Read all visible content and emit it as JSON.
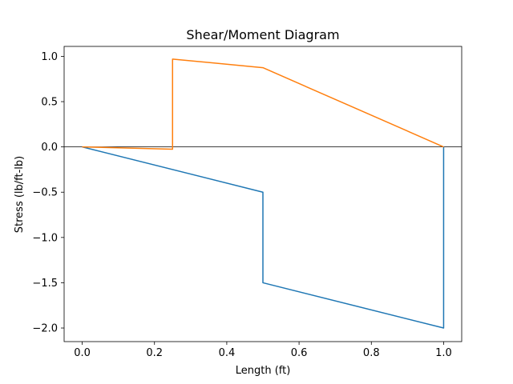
{
  "chart_data": {
    "type": "line",
    "title": "Shear/Moment Diagram",
    "xlabel": "Length (ft)",
    "ylabel": "Stress (lb/ft-lb)",
    "xlim": [
      -0.05,
      1.05
    ],
    "ylim": [
      -2.15,
      1.11
    ],
    "xticks": [
      0.0,
      0.2,
      0.4,
      0.6,
      0.8,
      1.0
    ],
    "xtick_labels": [
      "0.0",
      "0.2",
      "0.4",
      "0.6",
      "0.8",
      "1.0"
    ],
    "yticks": [
      -2.0,
      -1.5,
      -1.0,
      -0.5,
      0.0,
      0.5,
      1.0
    ],
    "ytick_labels": [
      "−2.0",
      "−1.5",
      "−1.0",
      "−0.5",
      "0.0",
      "0.5",
      "1.0"
    ],
    "grid": false,
    "zero_line": true,
    "series": [
      {
        "color": "#1f77b4",
        "points": [
          [
            0.0,
            0.0
          ],
          [
            0.5,
            -0.5
          ],
          [
            0.5,
            -1.5
          ],
          [
            1.0,
            -2.0
          ],
          [
            1.0,
            0.0
          ]
        ]
      },
      {
        "color": "#ff7f0e",
        "points": [
          [
            0.0,
            0.0
          ],
          [
            0.25,
            -0.025
          ],
          [
            0.25,
            0.97
          ],
          [
            0.5,
            0.875
          ],
          [
            1.0,
            0.0
          ]
        ]
      }
    ]
  }
}
